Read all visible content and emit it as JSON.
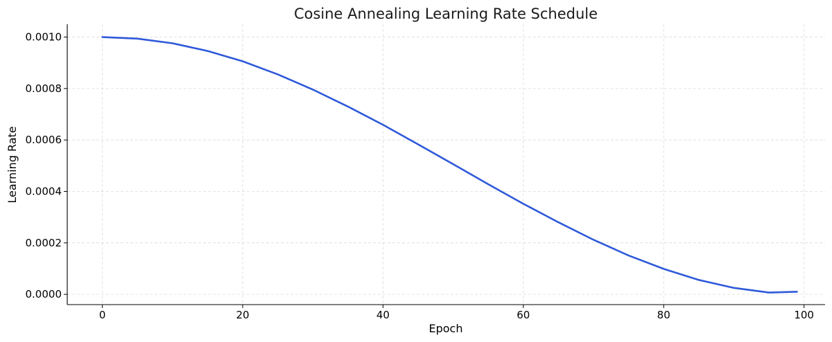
{
  "chart_data": {
    "type": "line",
    "title": "Cosine Annealing Learning Rate Schedule",
    "xlabel": "Epoch",
    "ylabel": "Learning Rate",
    "xlim": [
      -5,
      103
    ],
    "ylim": [
      -4e-05,
      0.00105
    ],
    "xticks": [
      0,
      20,
      40,
      60,
      80,
      100
    ],
    "xtick_labels": [
      "0",
      "20",
      "40",
      "60",
      "80",
      "100"
    ],
    "yticks": [
      0,
      0.0002,
      0.0004,
      0.0006,
      0.0008,
      0.001
    ],
    "ytick_labels": [
      "0.0000",
      "0.0002",
      "0.0004",
      "0.0006",
      "0.0008",
      "0.0010"
    ],
    "grid": true,
    "series": [
      {
        "color": "#2e59d9",
        "x": [
          0,
          5,
          10,
          15,
          20,
          25,
          30,
          35,
          40,
          45,
          50,
          55,
          60,
          65,
          70,
          75,
          80,
          85,
          90,
          95,
          99
        ],
        "y": [
          0.001,
          0.000994,
          0.000976,
          0.000946,
          0.000906,
          0.000855,
          0.000796,
          0.00073,
          0.000659,
          0.000583,
          0.000506,
          0.000428,
          0.000352,
          0.00028,
          0.000212,
          0.000151,
          9.9e-05,
          5.6e-05,
          2.5e-05,
          7e-06,
          1e-05
        ]
      }
    ]
  }
}
